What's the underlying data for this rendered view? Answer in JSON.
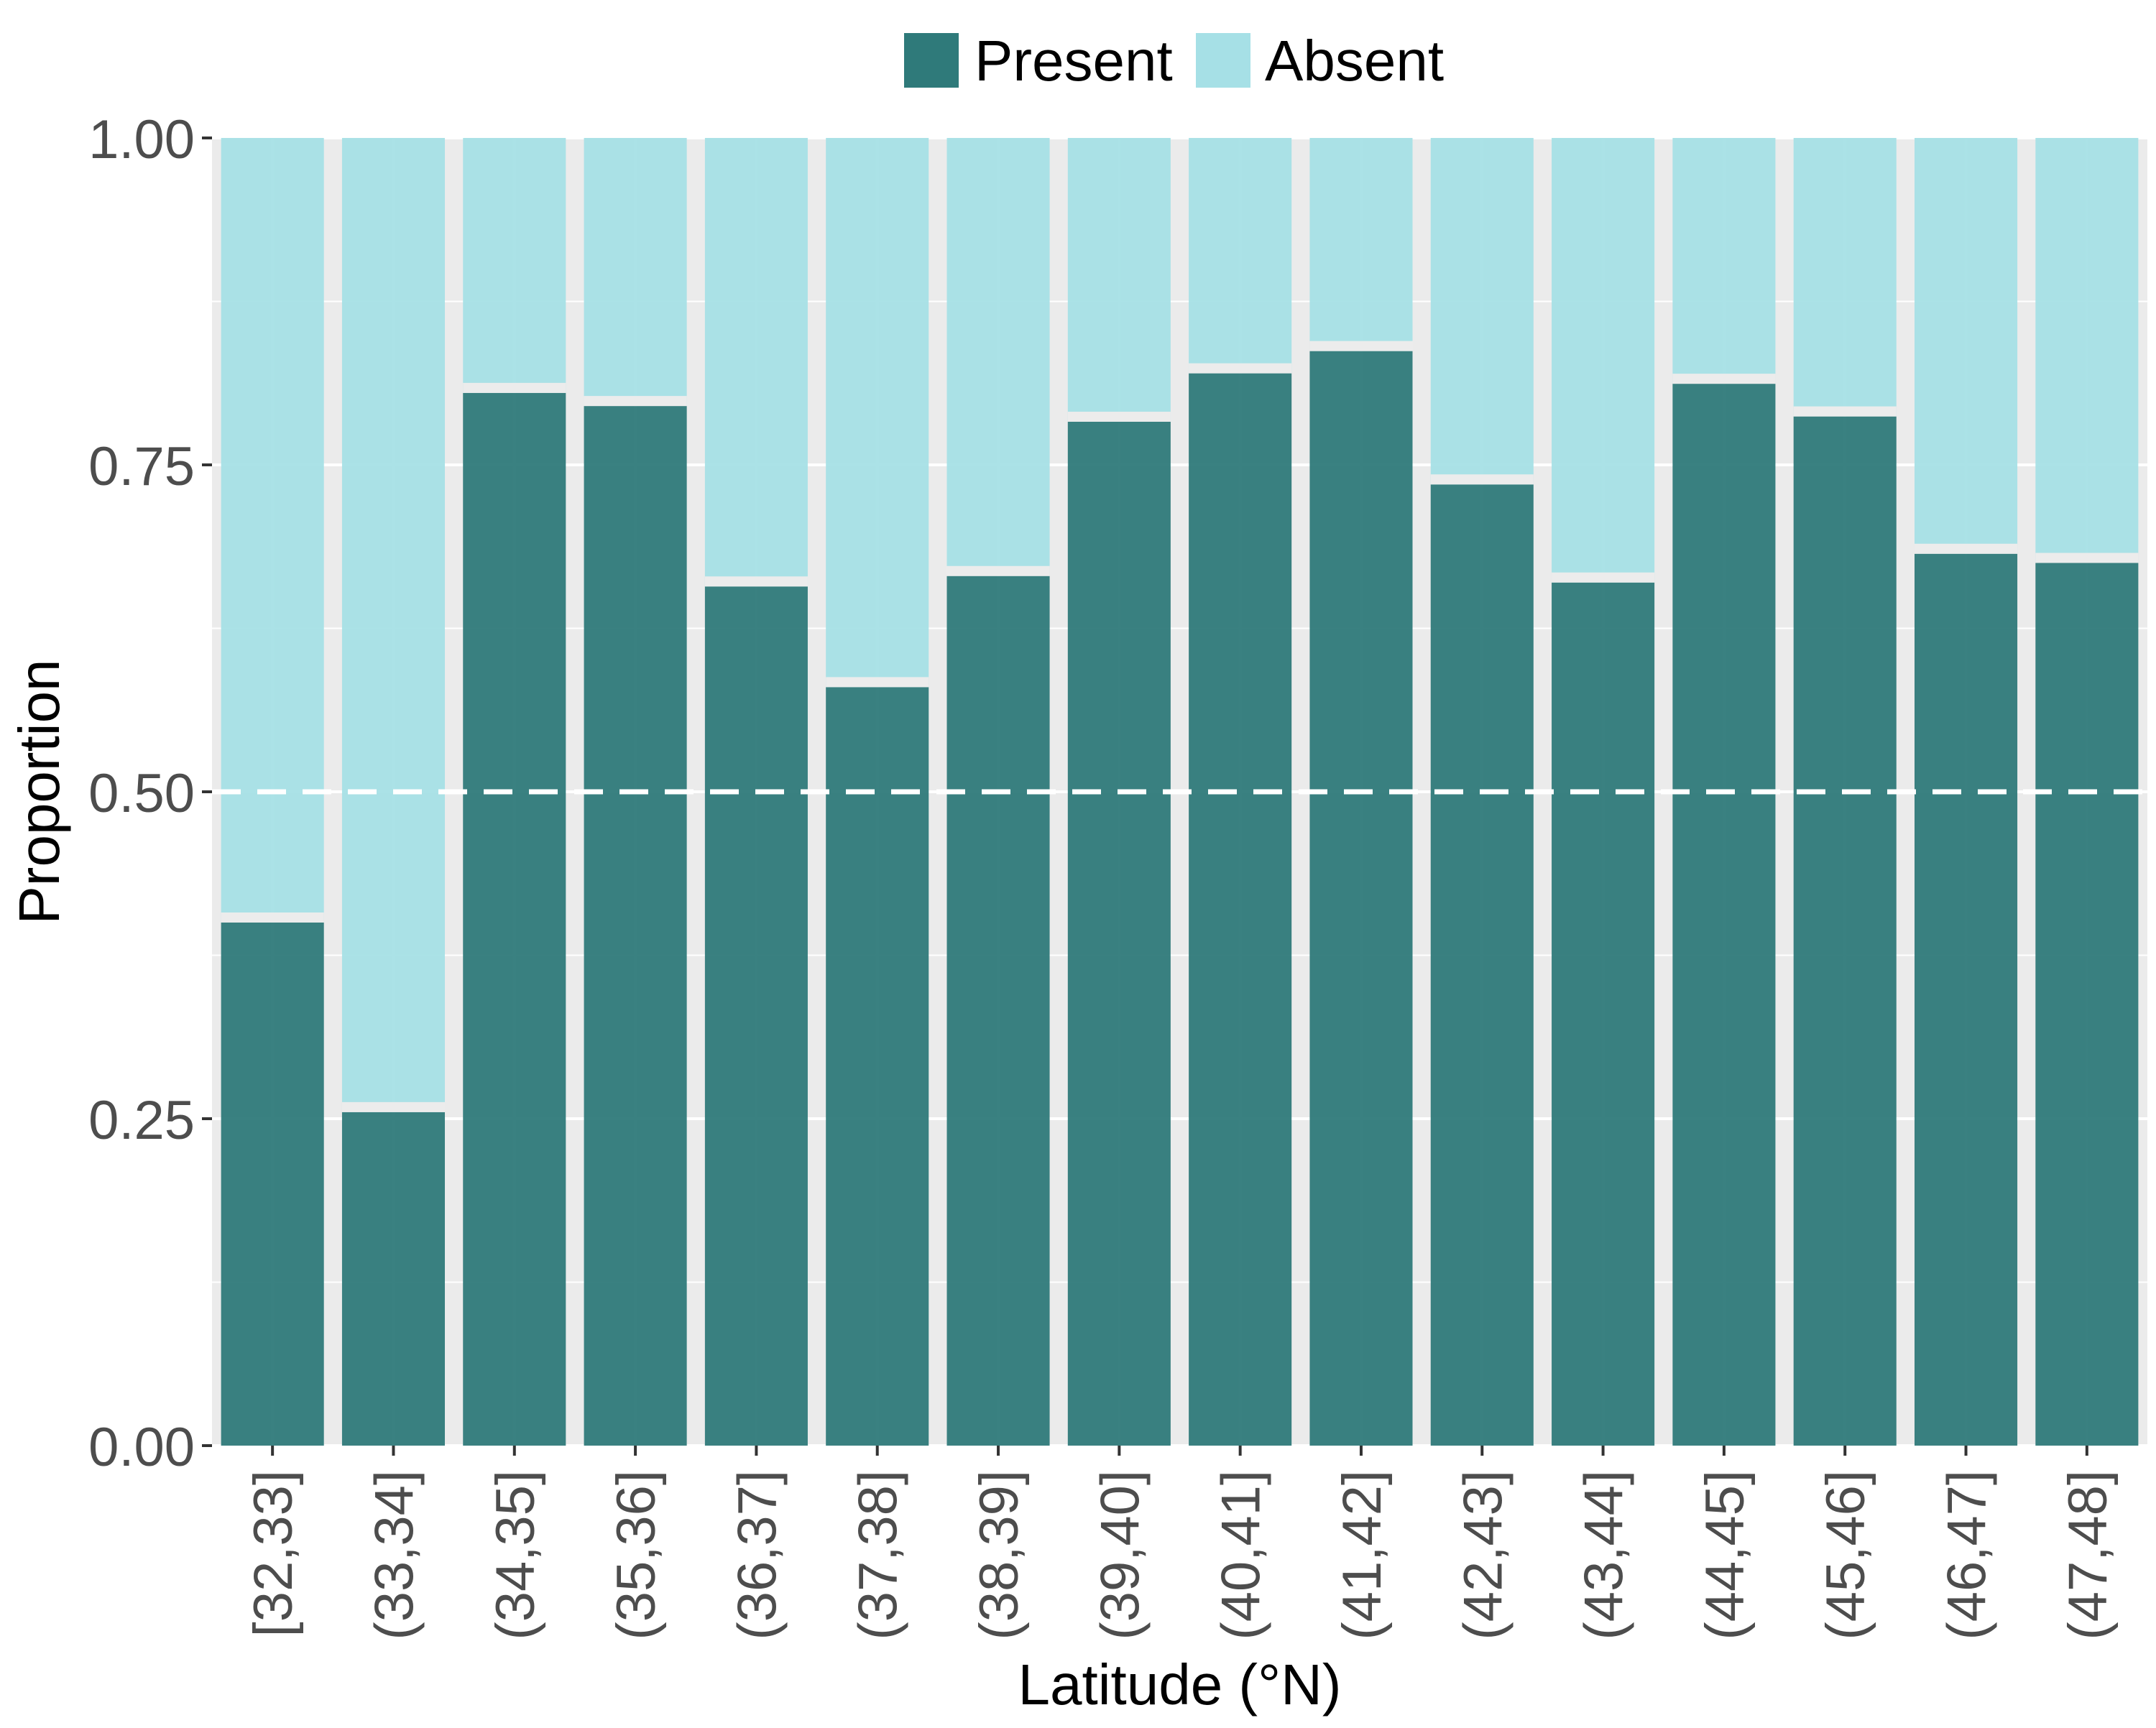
{
  "legend": {
    "position": "top",
    "items": [
      {
        "label": "Present",
        "color": "#2f7a7a"
      },
      {
        "label": "Absent",
        "color": "#a6e0e6"
      }
    ]
  },
  "chart_data": {
    "type": "bar",
    "stacked": true,
    "xlabel": "Latitude (°N)",
    "ylabel": "Proportion",
    "ylim": [
      0,
      1
    ],
    "yticks": [
      "0.00",
      "0.25",
      "0.50",
      "0.75",
      "1.00"
    ],
    "categories": [
      "[32,33]",
      "(33,34]",
      "(34,35]",
      "(35,36]",
      "(36,37]",
      "(37,38]",
      "(38,39]",
      "(39,40]",
      "(40,41]",
      "(41,42]",
      "(42,43]",
      "(43,44]",
      "(44,45]",
      "(45,46]",
      "(46,47]",
      "(47,48]"
    ],
    "series": [
      {
        "name": "Present",
        "values": [
          0.4,
          0.255,
          0.805,
          0.795,
          0.657,
          0.58,
          0.665,
          0.783,
          0.82,
          0.837,
          0.735,
          0.66,
          0.812,
          0.787,
          0.682,
          0.675
        ]
      },
      {
        "name": "Absent",
        "values": [
          0.6,
          0.745,
          0.195,
          0.205,
          0.343,
          0.42,
          0.335,
          0.217,
          0.18,
          0.163,
          0.265,
          0.34,
          0.188,
          0.213,
          0.318,
          0.325
        ]
      }
    ],
    "reference_line": {
      "y": 0.5,
      "style": "dashed",
      "color": "#ffffff"
    },
    "grid": true,
    "panel_background": "#ebebeb"
  }
}
